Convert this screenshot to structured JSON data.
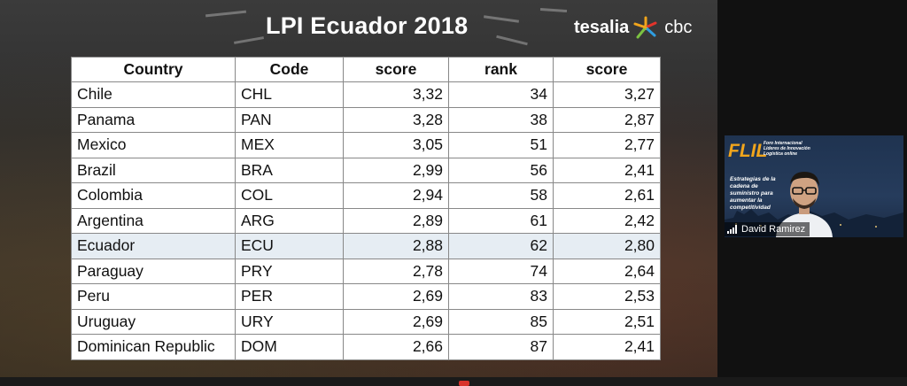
{
  "slide": {
    "title": "LPI Ecuador 2018",
    "logo_left": "tesalia",
    "logo_right": "cbc"
  },
  "table": {
    "headers": [
      "Country",
      "Code",
      "score",
      "rank",
      "score"
    ],
    "rows": [
      [
        "Chile",
        "CHL",
        "3,32",
        "34",
        "3,27"
      ],
      [
        "Panama",
        "PAN",
        "3,28",
        "38",
        "2,87"
      ],
      [
        "Mexico",
        "MEX",
        "3,05",
        "51",
        "2,77"
      ],
      [
        "Brazil",
        "BRA",
        "2,99",
        "56",
        "2,41"
      ],
      [
        "Colombia",
        "COL",
        "2,94",
        "58",
        "2,61"
      ],
      [
        "Argentina",
        "ARG",
        "2,89",
        "61",
        "2,42"
      ],
      [
        "Ecuador",
        "ECU",
        "2,88",
        "62",
        "2,80"
      ],
      [
        "Paraguay",
        "PRY",
        "2,78",
        "74",
        "2,64"
      ],
      [
        "Peru",
        "PER",
        "2,69",
        "83",
        "2,53"
      ],
      [
        "Uruguay",
        "URY",
        "2,69",
        "85",
        "2,51"
      ],
      [
        "Dominican Republic",
        "DOM",
        "2,66",
        "87",
        "2,41"
      ]
    ],
    "highlight_row": 6
  },
  "video": {
    "participant_name": "David Ramirez",
    "background_logo": "FLIL",
    "background_small_text": "Foro Internacional Líderes de Innovación Logística online",
    "background_tagline": "Estrategias de la cadena de suministro para aumentar la competitividad"
  },
  "colors": {
    "accent_orange": "#f1a51c",
    "highlight_row": "#e6edf3"
  }
}
